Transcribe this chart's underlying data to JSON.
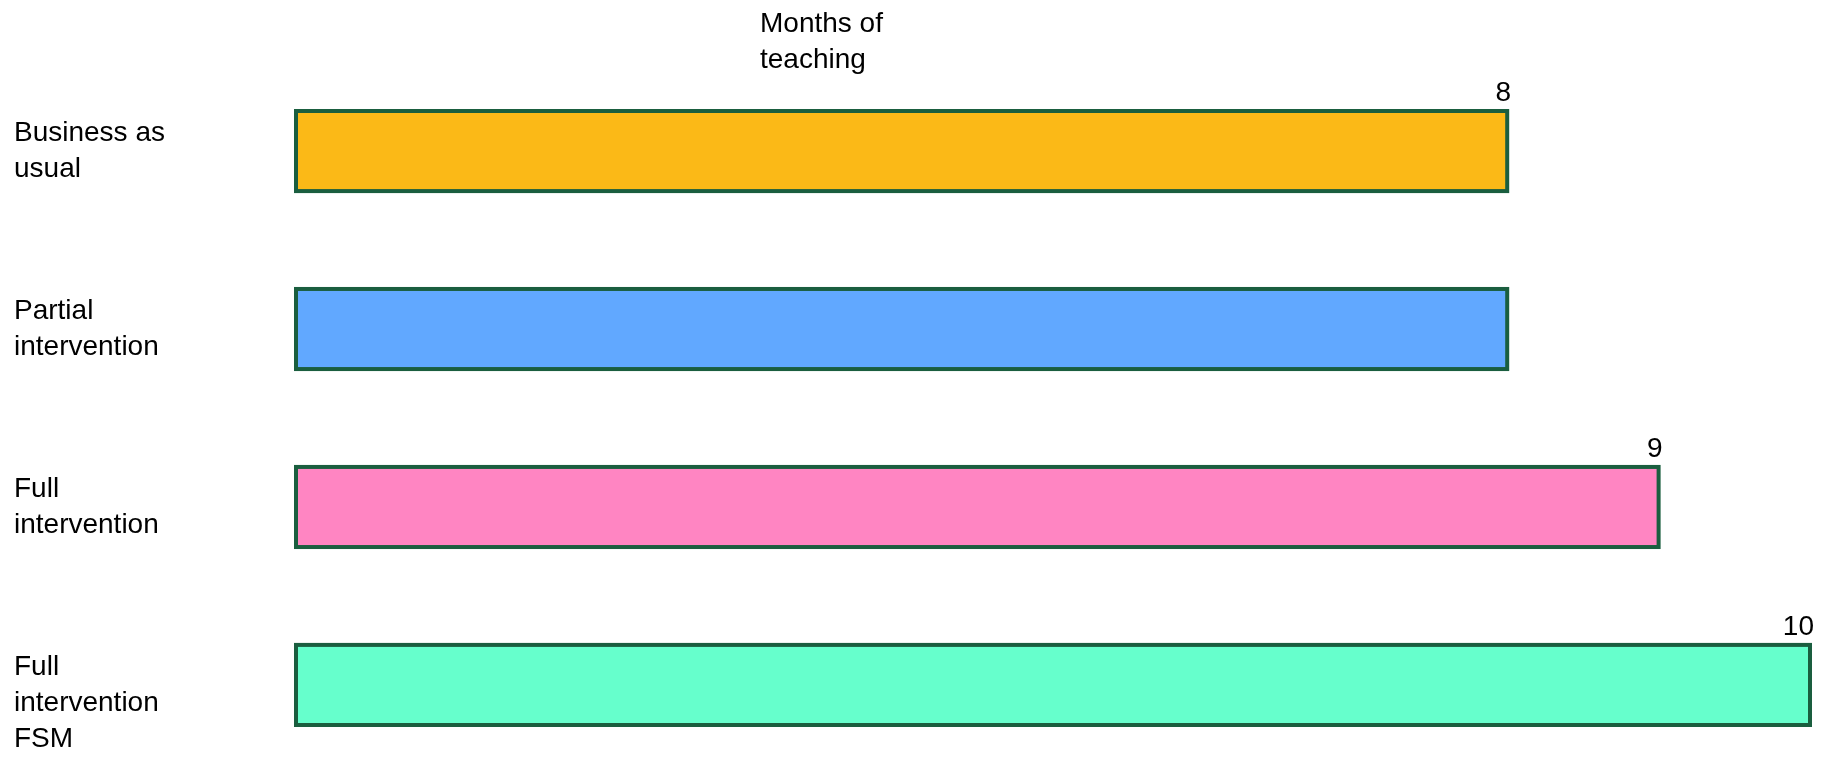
{
  "chart_data": {
    "type": "bar",
    "orientation": "horizontal",
    "title": "Months of teaching",
    "categories": [
      "Business as usual",
      "Partial intervention",
      "Full intervention",
      "Full intervention FSM"
    ],
    "values": [
      8,
      8,
      9,
      10
    ],
    "colors": [
      "#fbb917",
      "#61a8ff",
      "#ff85c2",
      "#66ffcc"
    ],
    "value_labels": [
      "8",
      null,
      "9",
      "10"
    ],
    "xlim": [
      0,
      10
    ],
    "tick_labels": false
  }
}
